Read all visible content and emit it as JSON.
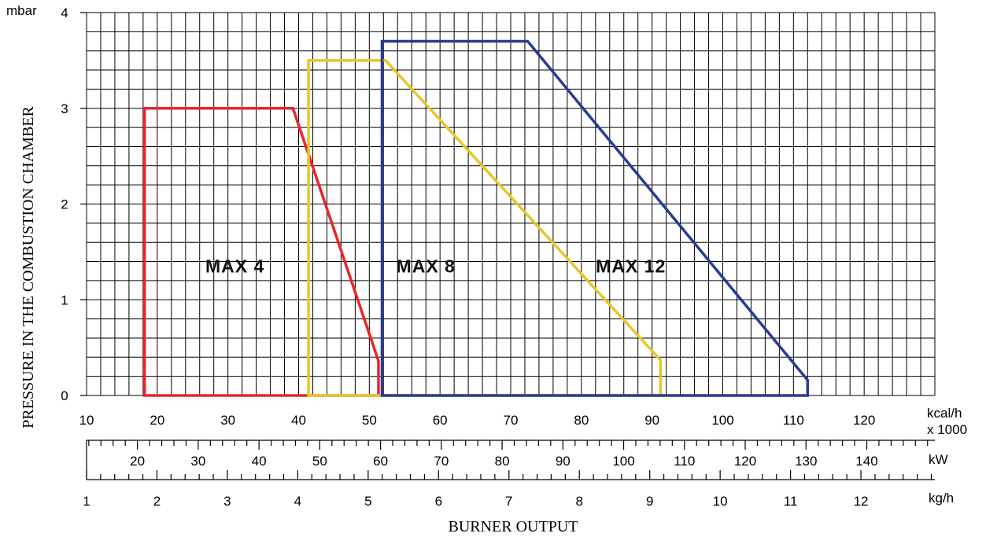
{
  "chart_data": {
    "type": "area",
    "ylabel": "PRESSURE IN THE COMBUSTION CHAMBER",
    "xlabel": "BURNER OUTPUT",
    "y_unit": "mbar",
    "ylim": [
      0,
      4
    ],
    "y_ticks": [
      0,
      1,
      2,
      3,
      4
    ],
    "grid": true,
    "axes": {
      "kcal": {
        "unit_line1": "kcal/h",
        "unit_line2": "x 1000",
        "range": [
          10,
          130
        ],
        "ticks": [
          10,
          20,
          30,
          40,
          50,
          60,
          70,
          80,
          90,
          100,
          110,
          120
        ],
        "minor_step": 2
      },
      "kw": {
        "unit": "kW",
        "range": [
          11.63,
          151.2
        ],
        "ticks": [
          20,
          30,
          40,
          50,
          60,
          70,
          80,
          90,
          100,
          110,
          120,
          130,
          140
        ],
        "minor_step": 2
      },
      "kgh": {
        "unit": "kg/h",
        "range": [
          1,
          13.05
        ],
        "ticks": [
          1,
          2,
          3,
          4,
          5,
          6,
          7,
          8,
          9,
          10,
          11,
          12
        ],
        "minor_step": 0.2
      }
    },
    "series": [
      {
        "name": "MAX 4",
        "color": "#e8262b",
        "label_pos": [
          31,
          1.35
        ],
        "points": [
          [
            18.2,
            0
          ],
          [
            18.2,
            3.0
          ],
          [
            39.2,
            3.0
          ],
          [
            51.3,
            0.36
          ],
          [
            51.3,
            0
          ]
        ]
      },
      {
        "name": "MAX 8",
        "color": "#e6c62a",
        "label_pos": [
          58,
          1.35
        ],
        "points": [
          [
            41.4,
            0
          ],
          [
            41.4,
            3.5
          ],
          [
            52.3,
            3.5
          ],
          [
            91.2,
            0.37
          ],
          [
            91.2,
            0
          ]
        ]
      },
      {
        "name": "MAX 12",
        "color": "#283c94",
        "label_pos": [
          87,
          1.35
        ],
        "points": [
          [
            51.8,
            0
          ],
          [
            51.8,
            3.7
          ],
          [
            72.4,
            3.7
          ],
          [
            112.0,
            0.16
          ],
          [
            112.0,
            0
          ]
        ]
      }
    ]
  }
}
